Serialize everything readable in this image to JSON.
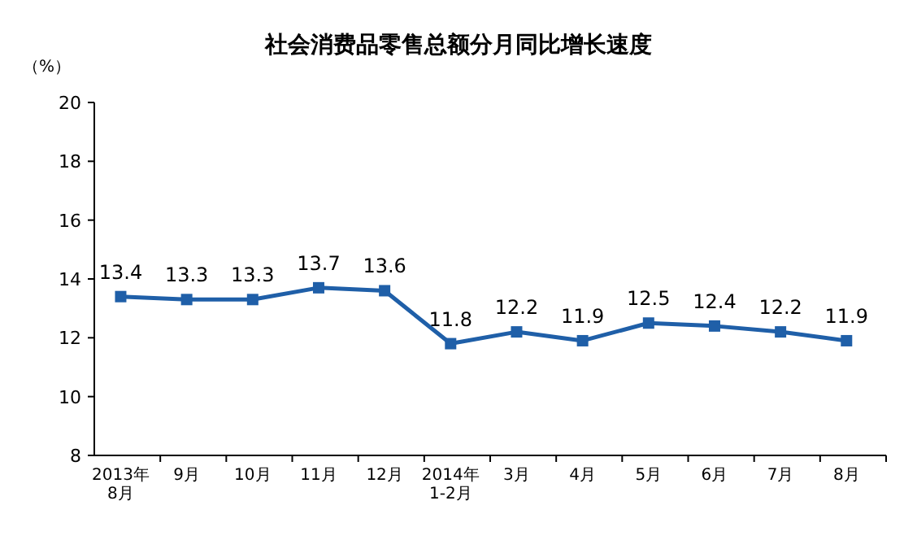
{
  "chart_data": {
    "type": "line",
    "title": "社会消费品零售总额分月同比增长速度",
    "ylabel": "（%）",
    "categories": [
      "2013年\n8月",
      "9月",
      "10月",
      "11月",
      "12月",
      "2014年\n1-2月",
      "3月",
      "4月",
      "5月",
      "6月",
      "7月",
      "8月"
    ],
    "series": [
      {
        "color": "#1f5fa8",
        "values": [
          13.4,
          13.3,
          13.3,
          13.7,
          13.6,
          11.8,
          12.2,
          11.9,
          12.5,
          12.4,
          12.2,
          11.9
        ]
      }
    ],
    "ylim": [
      8,
      20
    ],
    "yticks": [
      8,
      10,
      12,
      14,
      16,
      18,
      20
    ],
    "marker": "square",
    "data_labels": true
  }
}
